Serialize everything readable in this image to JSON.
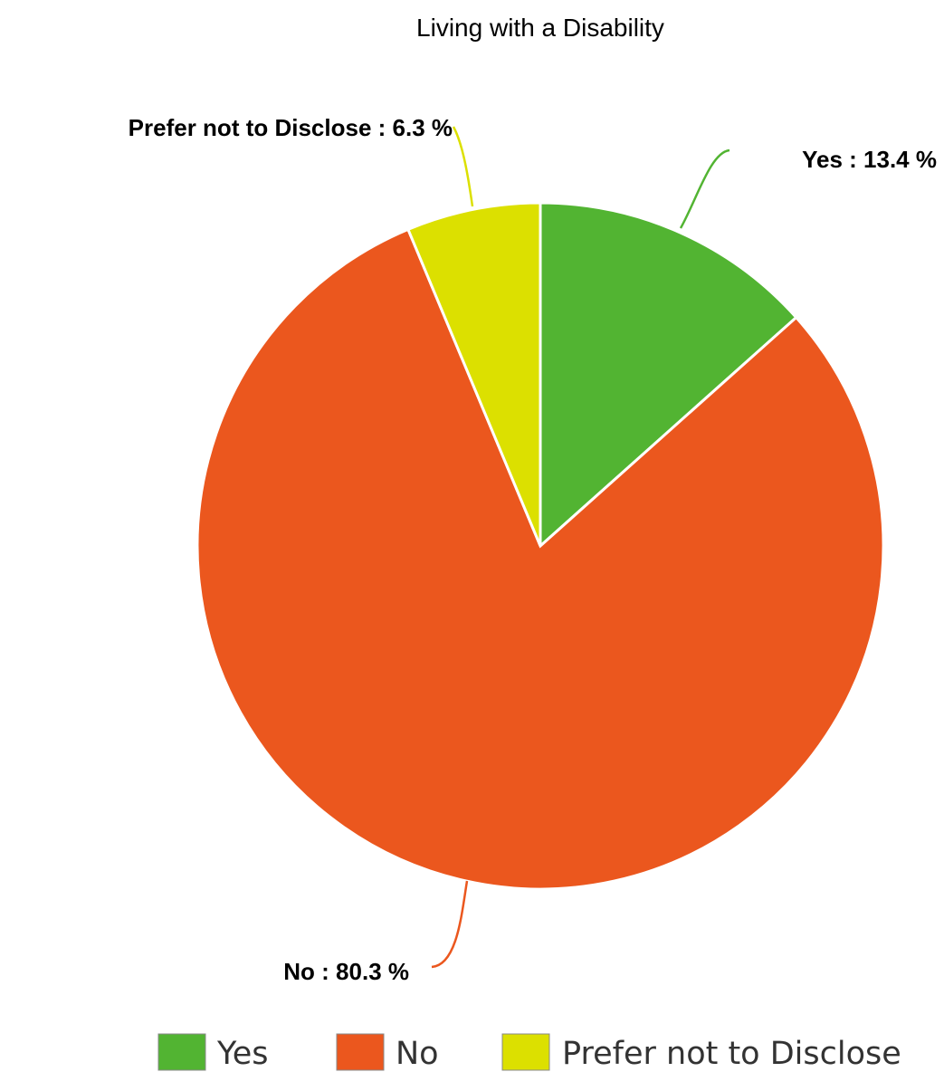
{
  "chart_data": {
    "type": "pie",
    "title": "Living with a Disability",
    "slices": [
      {
        "name": "Yes",
        "value": 13.4,
        "label": "Yes : 13.4 %",
        "color": "#52b432"
      },
      {
        "name": "No",
        "value": 80.3,
        "label": "No : 80.3 %",
        "color": "#eb571e"
      },
      {
        "name": "Prefer not to Disclose",
        "value": 6.3,
        "label": "Prefer not to Disclose : 6.3 %",
        "color": "#dce000"
      }
    ],
    "legend": {
      "position": "bottom",
      "entries": [
        "Yes",
        "No",
        "Prefer not to Disclose"
      ]
    }
  }
}
